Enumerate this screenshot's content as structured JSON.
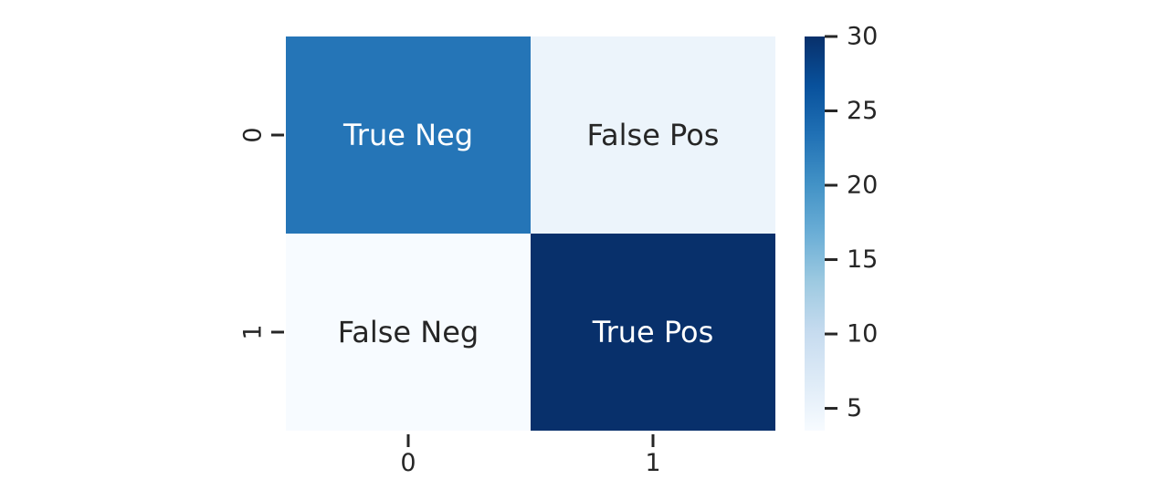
{
  "chart_data": {
    "type": "heatmap",
    "title": "",
    "xlabel": "",
    "ylabel": "",
    "x_categories": [
      "0",
      "1"
    ],
    "y_categories": [
      "0",
      "1"
    ],
    "values": [
      [
        23,
        5
      ],
      [
        3.5,
        30
      ]
    ],
    "annotations": [
      [
        "True Neg",
        "False Pos"
      ],
      [
        "False Neg",
        "True Pos"
      ]
    ],
    "colormap": "Blues",
    "colorbar": {
      "range": [
        3.5,
        30
      ],
      "ticks": [
        5,
        10,
        15,
        20,
        25,
        30
      ]
    }
  }
}
